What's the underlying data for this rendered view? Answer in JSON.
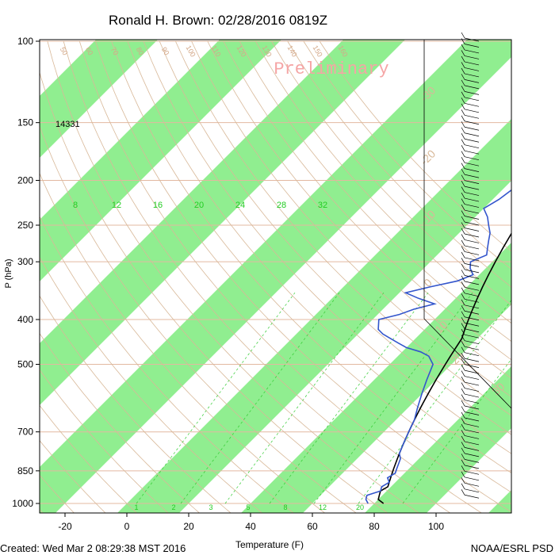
{
  "chart_data": {
    "type": "line",
    "title": "Ronald H. Brown: 02/28/2016 0819Z",
    "watermark": "Preliminary",
    "xlabel": "Temperature (F)",
    "ylabel": "P (hPa)",
    "x_ticks": [
      "-20",
      "0",
      "20",
      "40",
      "60",
      "80",
      "100"
    ],
    "y_ticks": [
      "100",
      "150",
      "200",
      "250",
      "300",
      "400",
      "500",
      "700",
      "850",
      "1000"
    ],
    "height_annotation": "14331",
    "mixing_ratio_labels": [
      "8",
      "12",
      "16",
      "20",
      "24",
      "28",
      "32"
    ],
    "mixing_ratio_bottom_labels": [
      "1",
      "2",
      "3",
      "5",
      "8",
      "12",
      "20"
    ],
    "dry_adiabat_labels": [
      "50",
      "60",
      "70",
      "80",
      "90",
      "100",
      "110",
      "120",
      "130",
      "140",
      "150",
      "160"
    ],
    "moist_adiabat_labels": [
      "-30",
      "-20",
      "-10",
      "0",
      "10",
      "20",
      "30"
    ],
    "series": [
      {
        "name": "temperature",
        "color": "#000000",
        "points": [
          [
            83,
            1000
          ],
          [
            80,
            980
          ],
          [
            79,
            960
          ],
          [
            78,
            940
          ],
          [
            79,
            920
          ],
          [
            78,
            900
          ],
          [
            77,
            880
          ],
          [
            76,
            860
          ],
          [
            75,
            840
          ],
          [
            73,
            800
          ],
          [
            72,
            780
          ],
          [
            71,
            760
          ],
          [
            70,
            740
          ],
          [
            69,
            720
          ],
          [
            68,
            700
          ],
          [
            67,
            680
          ],
          [
            66,
            660
          ],
          [
            65,
            640
          ],
          [
            64,
            620
          ],
          [
            63,
            600
          ],
          [
            62,
            580
          ],
          [
            61,
            560
          ],
          [
            60,
            540
          ],
          [
            59,
            520
          ],
          [
            58,
            500
          ],
          [
            57,
            480
          ],
          [
            56,
            460
          ],
          [
            55,
            440
          ],
          [
            53,
            420
          ],
          [
            51,
            400
          ],
          [
            49,
            380
          ],
          [
            47,
            360
          ],
          [
            45,
            340
          ],
          [
            43,
            320
          ],
          [
            41,
            300
          ],
          [
            39,
            280
          ],
          [
            37,
            260
          ],
          [
            35,
            240
          ],
          [
            33,
            220
          ],
          [
            31,
            200
          ],
          [
            29,
            180
          ],
          [
            26,
            160
          ],
          [
            24,
            145
          ],
          [
            23,
            130
          ],
          [
            22,
            125
          ],
          [
            21,
            120
          ],
          [
            19,
            110
          ],
          [
            17,
            100
          ]
        ]
      },
      {
        "name": "dewpoint",
        "color": "#3355cc",
        "points": [
          [
            78,
            1000
          ],
          [
            76,
            980
          ],
          [
            75,
            960
          ],
          [
            78,
            940
          ],
          [
            77,
            920
          ],
          [
            78,
            900
          ],
          [
            76,
            880
          ],
          [
            77,
            860
          ],
          [
            76,
            840
          ],
          [
            74,
            800
          ],
          [
            72,
            780
          ],
          [
            71,
            760
          ],
          [
            70,
            740
          ],
          [
            69,
            720
          ],
          [
            68,
            700
          ],
          [
            66,
            660
          ],
          [
            63,
            620
          ],
          [
            60,
            580
          ],
          [
            57,
            540
          ],
          [
            54,
            500
          ],
          [
            50,
            480
          ],
          [
            46,
            470
          ],
          [
            40,
            460
          ],
          [
            36,
            450
          ],
          [
            32,
            440
          ],
          [
            28,
            430
          ],
          [
            25,
            420
          ],
          [
            22,
            400
          ],
          [
            27,
            390
          ],
          [
            30,
            380
          ],
          [
            35,
            370
          ],
          [
            28,
            360
          ],
          [
            22,
            350
          ],
          [
            28,
            340
          ],
          [
            35,
            330
          ],
          [
            38,
            320
          ],
          [
            35,
            310
          ],
          [
            33,
            300
          ],
          [
            36,
            290
          ],
          [
            34,
            280
          ],
          [
            32,
            270
          ],
          [
            30,
            260
          ],
          [
            27,
            250
          ],
          [
            24,
            240
          ],
          [
            20,
            230
          ],
          [
            22,
            220
          ],
          [
            23,
            210
          ],
          [
            24,
            200
          ],
          [
            25,
            190
          ],
          [
            24,
            180
          ],
          [
            22,
            170
          ],
          [
            20,
            160
          ],
          [
            17,
            150
          ],
          [
            12,
            140
          ],
          [
            6,
            130
          ],
          [
            5,
            120
          ],
          [
            6,
            110
          ],
          [
            5,
            100
          ]
        ]
      }
    ],
    "xlim": [
      -30,
      115
    ],
    "ylim": [
      1050,
      100
    ]
  },
  "footer": {
    "created": "Created: Wed Mar  2 08:29:38 MST 2016",
    "credit": "NOAA/ESRL PSD"
  }
}
